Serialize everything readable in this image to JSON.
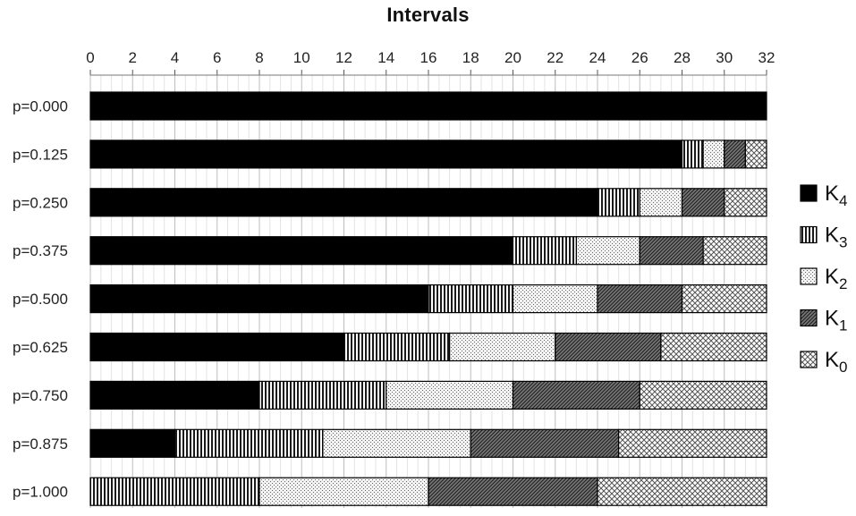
{
  "chart_data": {
    "type": "bar",
    "orientation": "horizontal",
    "stacked": true,
    "title": "Intervals",
    "xlabel": "",
    "ylabel": "",
    "x_axis_position": "top",
    "xlim": [
      0,
      32
    ],
    "xticks": [
      0,
      2,
      4,
      6,
      8,
      10,
      12,
      14,
      16,
      18,
      20,
      22,
      24,
      26,
      28,
      30,
      32
    ],
    "grid": true,
    "legend_position": "right",
    "categories": [
      "p=0.000",
      "p=0.125",
      "p=0.250",
      "p=0.375",
      "p=0.500",
      "p=0.625",
      "p=0.750",
      "p=0.875",
      "p=1.000"
    ],
    "series": [
      {
        "name": "K4",
        "base": "K",
        "sub": "4",
        "pattern": "solid",
        "values": [
          32,
          28,
          24,
          20,
          16,
          12,
          8,
          4,
          0
        ]
      },
      {
        "name": "K3",
        "base": "K",
        "sub": "3",
        "pattern": "vertical-lines",
        "values": [
          0,
          1,
          2,
          3,
          4,
          5,
          6,
          7,
          8
        ]
      },
      {
        "name": "K2",
        "base": "K",
        "sub": "2",
        "pattern": "dots",
        "values": [
          0,
          1,
          2,
          3,
          4,
          5,
          6,
          7,
          8
        ]
      },
      {
        "name": "K1",
        "base": "K",
        "sub": "1",
        "pattern": "diagonal-lines",
        "values": [
          0,
          1,
          2,
          3,
          4,
          5,
          6,
          7,
          8
        ]
      },
      {
        "name": "K0",
        "base": "K",
        "sub": "0",
        "pattern": "crosshatch",
        "values": [
          0,
          1,
          2,
          3,
          4,
          5,
          6,
          7,
          8
        ]
      }
    ]
  }
}
